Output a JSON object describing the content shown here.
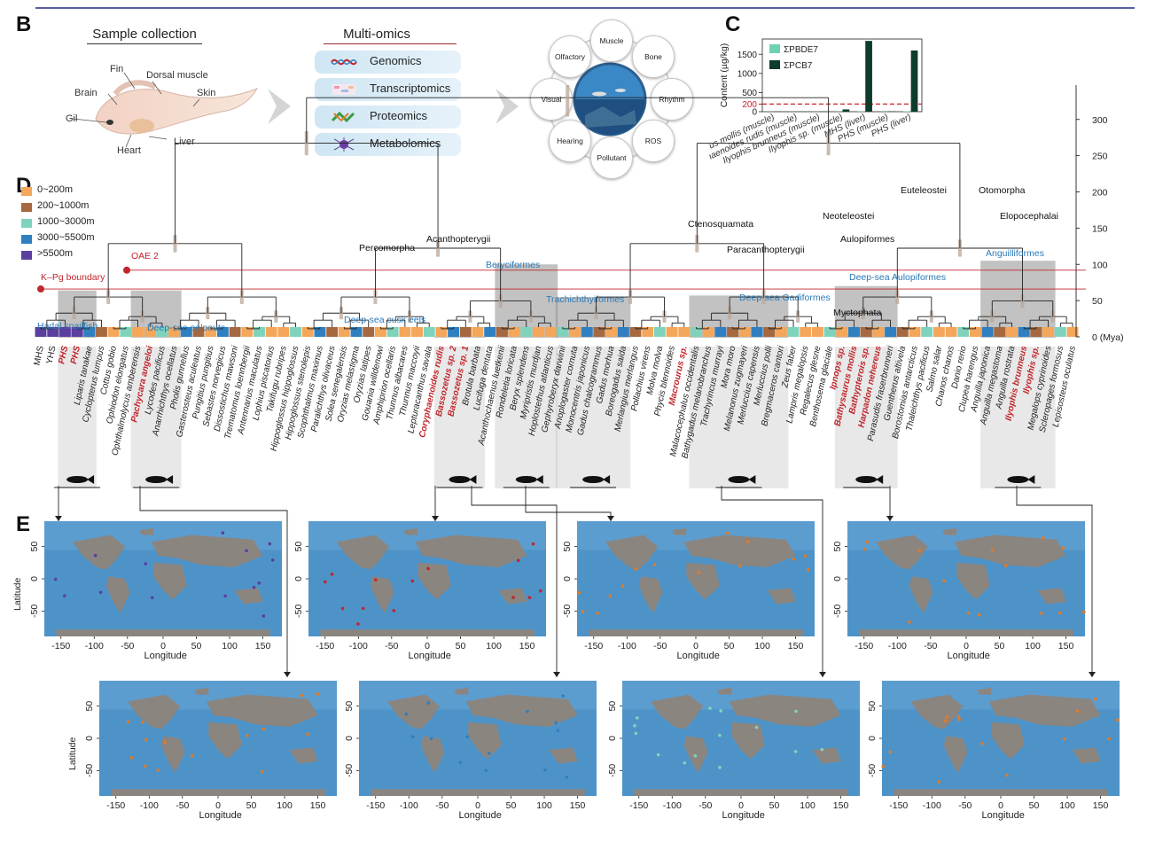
{
  "panels": {
    "b": "B",
    "c": "C",
    "d": "D",
    "e": "E"
  },
  "panel_b": {
    "sample_title": "Sample collection",
    "omics_title": "Multi-omics",
    "fish_parts": [
      "Fin",
      "Dorsal muscle",
      "Brain",
      "Skin",
      "Gil",
      "Liver",
      "Heart"
    ],
    "omics": [
      {
        "label": "Genomics",
        "icon": "dna-icon"
      },
      {
        "label": "Transcriptomics",
        "icon": "heatmap-icon"
      },
      {
        "label": "Proteomics",
        "icon": "protein-icon"
      },
      {
        "label": "Metabolomics",
        "icon": "molecule-icon"
      }
    ],
    "traits": [
      "Muscle",
      "Bone",
      "Rhythm",
      "ROS",
      "Pollutant",
      "Hearing",
      "Visual",
      "Olfactory"
    ]
  },
  "panel_c": {
    "ylabel": "Content (µg/kg)",
    "yticks": [
      "0",
      "200",
      "500",
      "1000",
      "1500"
    ],
    "legend": [
      "ΣPBDE7",
      "ΣPCB7"
    ],
    "colors": {
      "pbde": "#6fd1b3",
      "pcb": "#0d3b2c",
      "threshold": "#d0202a"
    },
    "chart_data": {
      "type": "bar",
      "categories": [
        "Bathysaurus mollis (muscle)",
        "Coryphaenoides rudis (muscle)",
        "Ilyophis brunneus (muscle)",
        "Ilyophis sp. (muscle)",
        "MHS (liver)",
        "PHS (muscle)",
        "PHS (liver)"
      ],
      "series": [
        {
          "name": "ΣPBDE7",
          "values": [
            2,
            1,
            2,
            3,
            8,
            3,
            12
          ]
        },
        {
          "name": "ΣPCB7",
          "values": [
            3,
            2,
            5,
            60,
            1850,
            10,
            1600
          ]
        }
      ],
      "ylim": [
        0,
        1900
      ],
      "threshold": 200
    }
  },
  "panel_d": {
    "depth_legend": [
      {
        "label": "0~200m",
        "color": "#f4a65a"
      },
      {
        "label": "200~1000m",
        "color": "#a6683e"
      },
      {
        "label": "1000~3000m",
        "color": "#7fd3bd"
      },
      {
        "label": "3000~5500m",
        "color": "#2f7fc1"
      },
      {
        "label": ">5500m",
        "color": "#5b3f9f"
      }
    ],
    "events": [
      "OAE 2",
      "K–Pg boundary"
    ],
    "nodes": [
      "Percomorpha",
      "Acanthopterygii",
      "Ctenosquamata",
      "Paracanthopterygii",
      "Euteleostei",
      "Neoteleostei",
      "Aulopiformes",
      "Otomorpha",
      "Elopocephalai",
      "Myctophata"
    ],
    "clades": [
      "Hadal snailfish",
      "Deep-sea eelpouts",
      "Deep-sea cusk eels",
      "Beryciformes",
      "Trachichthyiformes",
      "Deep-sea Gadiformes",
      "Deep-sea Aulopiformes",
      "Anguilliformes"
    ],
    "axis_ticks": [
      "300",
      "250",
      "200",
      "150",
      "100",
      "50",
      "0 (Mya)"
    ],
    "species": [
      {
        "name": "MHS",
        "red": false
      },
      {
        "name": "YHS",
        "red": false
      },
      {
        "name": "PHS",
        "red": true
      },
      {
        "name": "PHS",
        "red": true
      },
      {
        "name": "Liparis tanakae",
        "red": false
      },
      {
        "name": "Cyclopterus lumpus",
        "red": false
      },
      {
        "name": "Cottus gobio",
        "red": false
      },
      {
        "name": "Ophiodon elongatus",
        "red": false
      },
      {
        "name": "Ophthalmolycus amberensis",
        "red": false
      },
      {
        "name": "Pachycara angeloi",
        "red": true
      },
      {
        "name": "Lycodes pacificus",
        "red": false
      },
      {
        "name": "Anarrhichthys ocellatus",
        "red": false
      },
      {
        "name": "Pholis gunnellus",
        "red": false
      },
      {
        "name": "Gasterosteus aculeatus",
        "red": false
      },
      {
        "name": "Pungitius pungitius",
        "red": false
      },
      {
        "name": "Sebastes norvegicus",
        "red": false
      },
      {
        "name": "Dissostichus mawsoni",
        "red": false
      },
      {
        "name": "Trematomus loennbergii",
        "red": false
      },
      {
        "name": "Antennarius maculatus",
        "red": false
      },
      {
        "name": "Lophius piscatorius",
        "red": false
      },
      {
        "name": "Takifugu rubripes",
        "red": false
      },
      {
        "name": "Hippoglossus hippoglossus",
        "red": false
      },
      {
        "name": "Hippoglossus stenolepis",
        "red": false
      },
      {
        "name": "Scophthalmus maximus",
        "red": false
      },
      {
        "name": "Paralichthys olivaceus",
        "red": false
      },
      {
        "name": "Solea senegalensis",
        "red": false
      },
      {
        "name": "Oryzias melastigma",
        "red": false
      },
      {
        "name": "Oryzias latipes",
        "red": false
      },
      {
        "name": "Gouania willdenowi",
        "red": false
      },
      {
        "name": "Amphiprion ocellaris",
        "red": false
      },
      {
        "name": "Thunnus albacares",
        "red": false
      },
      {
        "name": "Thunnus maccoyii",
        "red": false
      },
      {
        "name": "Lepturacanthus savala",
        "red": false
      },
      {
        "name": "Coryphaenoides rudis",
        "red": true
      },
      {
        "name": "Bassozetus sp. 2",
        "red": true
      },
      {
        "name": "Bassozetus sp. 1",
        "red": true
      },
      {
        "name": "Brotula barbata",
        "red": false
      },
      {
        "name": "Lucifuga dentata",
        "red": false
      },
      {
        "name": "Acanthochaenus luetkenii",
        "red": false
      },
      {
        "name": "Rondeletia loricata",
        "red": false
      },
      {
        "name": "Beryx splendens",
        "red": false
      },
      {
        "name": "Myripristis murdjan",
        "red": false
      },
      {
        "name": "Hoplostethus atlanticus",
        "red": false
      },
      {
        "name": "Gephyroberyx darwinii",
        "red": false
      },
      {
        "name": "Anoplogaster cornuta",
        "red": false
      },
      {
        "name": "Monocentris japonicus",
        "red": false
      },
      {
        "name": "Gadus chalcogrammus",
        "red": false
      },
      {
        "name": "Gadus morhua",
        "red": false
      },
      {
        "name": "Boreogadus saida",
        "red": false
      },
      {
        "name": "Merlangius merlangus",
        "red": false
      },
      {
        "name": "Pollachius virens",
        "red": false
      },
      {
        "name": "Molva molva",
        "red": false
      },
      {
        "name": "Phycis blennoides",
        "red": false
      },
      {
        "name": "Macrourus sp.",
        "red": true
      },
      {
        "name": "Malacocephalus occidentalis",
        "red": false
      },
      {
        "name": "Bathygadus melanobranchus",
        "red": false
      },
      {
        "name": "Trachyrincus murrayi",
        "red": false
      },
      {
        "name": "Mora moro",
        "red": false
      },
      {
        "name": "Melanonus zugmayeri",
        "red": false
      },
      {
        "name": "Merluccius capensis",
        "red": false
      },
      {
        "name": "Merluccius polli",
        "red": false
      },
      {
        "name": "Bregmaceros cantori",
        "red": false
      },
      {
        "name": "Zeus faber",
        "red": false
      },
      {
        "name": "Lampris megalopsis",
        "red": false
      },
      {
        "name": "Regalecus glesne",
        "red": false
      },
      {
        "name": "Benthosema glaciale",
        "red": false
      },
      {
        "name": "Ipnops sp.",
        "red": true
      },
      {
        "name": "Bathysaurus mollis",
        "red": true
      },
      {
        "name": "Bathypterois sp.",
        "red": true
      },
      {
        "name": "Harpadon nehereus",
        "red": true
      },
      {
        "name": "Parasudis fraserbrunneri",
        "red": false
      },
      {
        "name": "Guentherus altivela",
        "red": false
      },
      {
        "name": "Borostomias antarcticus",
        "red": false
      },
      {
        "name": "Thaleichthys pacificus",
        "red": false
      },
      {
        "name": "Salmo salar",
        "red": false
      },
      {
        "name": "Chanos chanos",
        "red": false
      },
      {
        "name": "Danio rerio",
        "red": false
      },
      {
        "name": "Clupea harengus",
        "red": false
      },
      {
        "name": "Anguilla japonica",
        "red": false
      },
      {
        "name": "Anguilla megastoma",
        "red": false
      },
      {
        "name": "Anguilla rostrata",
        "red": false
      },
      {
        "name": "Ilyophis brunneus",
        "red": true
      },
      {
        "name": "Ilyophis sp.",
        "red": true
      },
      {
        "name": "Megalops cyprinoides",
        "red": false
      },
      {
        "name": "Scleropages formosus",
        "red": false
      },
      {
        "name": "Lepisosteus oculatus",
        "red": false
      }
    ]
  },
  "panel_e": {
    "latitude_label": "Latitude",
    "longitude_label": "Longitude",
    "lon_ticks": [
      "-150",
      "-100",
      "-50",
      "0",
      "50",
      "100",
      "150"
    ],
    "lat_ticks": [
      "50",
      "0",
      "-50"
    ]
  }
}
